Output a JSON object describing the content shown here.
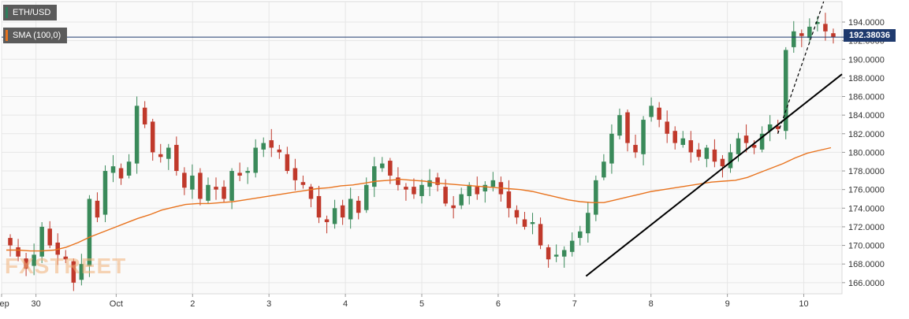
{
  "legend": {
    "symbol": "ETH/USD",
    "indicator": "SMA (100,0)",
    "symbol_color": "#2e7d5b",
    "indicator_color": "#e8731e"
  },
  "watermark": "FXSTREET",
  "colors": {
    "bull": "#3a8a5a",
    "bear": "#c0392b",
    "sma": "#e8731e",
    "current_line": "#1f3a6e",
    "grid": "#e6e6e6",
    "trendline": "#000000"
  },
  "chart_data": {
    "type": "candlestick",
    "title": "",
    "xlabel": "",
    "ylabel": "",
    "ylim": [
      164.8,
      196.2
    ],
    "y_ticks": [
      "166.0000",
      "168.0000",
      "170.0000",
      "172.0000",
      "174.0000",
      "176.0000",
      "178.0000",
      "180.0000",
      "182.0000",
      "184.0000",
      "186.0000",
      "188.0000",
      "190.0000",
      "192.0000",
      "194.0000"
    ],
    "x_ticks": [
      {
        "label": "Sep",
        "t": 0
      },
      {
        "label": "30",
        "t": 4.5
      },
      {
        "label": "Oct",
        "t": 15
      },
      {
        "label": "2",
        "t": 25
      },
      {
        "label": "3",
        "t": 35
      },
      {
        "label": "4",
        "t": 45
      },
      {
        "label": "5",
        "t": 55
      },
      {
        "label": "6",
        "t": 65
      },
      {
        "label": "7",
        "t": 75
      },
      {
        "label": "8",
        "t": 85
      },
      {
        "label": "9",
        "t": 95
      },
      {
        "label": "10",
        "t": 105
      }
    ],
    "current_price": 192.38036,
    "current_price_label": "192.38036",
    "grid": true,
    "closes": [
      170.0,
      168.8,
      167.5,
      169.0,
      172.0,
      170.0,
      169.0,
      168.5,
      166.0,
      168.0,
      175.0,
      173.0,
      178.0,
      178.5,
      177.2,
      179.0,
      185.0,
      183.0,
      180.0,
      179.5,
      180.5,
      178.0,
      176.2,
      177.5,
      175.0,
      176.5,
      176.0,
      175.0,
      178.0,
      177.5,
      178.0,
      180.5,
      181.0,
      180.5,
      180.0,
      178.0,
      177.0,
      176.5,
      175.0,
      173.0,
      172.5,
      174.0,
      173.0,
      175.0,
      173.5,
      176.5,
      178.5,
      178.8,
      177.5,
      176.5,
      176.0,
      175.5,
      176.5,
      177.0,
      176.5,
      174.5,
      174.0,
      175.5,
      176.5,
      175.5,
      176.5,
      177.0,
      175.5,
      174.0,
      173.0,
      172.0,
      172.5,
      170.0,
      168.5,
      169.0,
      169.5,
      170.5,
      171.5,
      173.5,
      177.0,
      179.0,
      182.0,
      184.0,
      181.0,
      180.0,
      183.5,
      185.0,
      183.5,
      182.0,
      181.0,
      181.5,
      180.0,
      179.5,
      180.5,
      179.0,
      178.5,
      180.0,
      181.5,
      181.0,
      180.5,
      182.0,
      183.0,
      182.5,
      191.0,
      193.0,
      192.5,
      193.5,
      194.0,
      193.0,
      192.4
    ],
    "sma": [
      169.5,
      169.5,
      169.4,
      169.4,
      169.5,
      169.8,
      170.3,
      170.9,
      171.4,
      171.9,
      172.4,
      172.9,
      173.3,
      173.8,
      174.1,
      174.4,
      174.5,
      174.5,
      174.6,
      174.7,
      174.9,
      175.1,
      175.3,
      175.5,
      175.7,
      175.9,
      176.1,
      176.2,
      176.4,
      176.5,
      176.7,
      176.9,
      177.0,
      177.1,
      177.0,
      176.9,
      176.7,
      176.6,
      176.5,
      176.4,
      176.3,
      176.2,
      176.1,
      176.0,
      175.8,
      175.5,
      175.2,
      174.9,
      174.7,
      174.6,
      174.6,
      174.9,
      175.2,
      175.5,
      175.8,
      176.0,
      176.2,
      176.4,
      176.6,
      176.8,
      176.9,
      177.0,
      177.3,
      177.8,
      178.3,
      178.8,
      179.4,
      179.9,
      180.2,
      180.5
    ]
  }
}
